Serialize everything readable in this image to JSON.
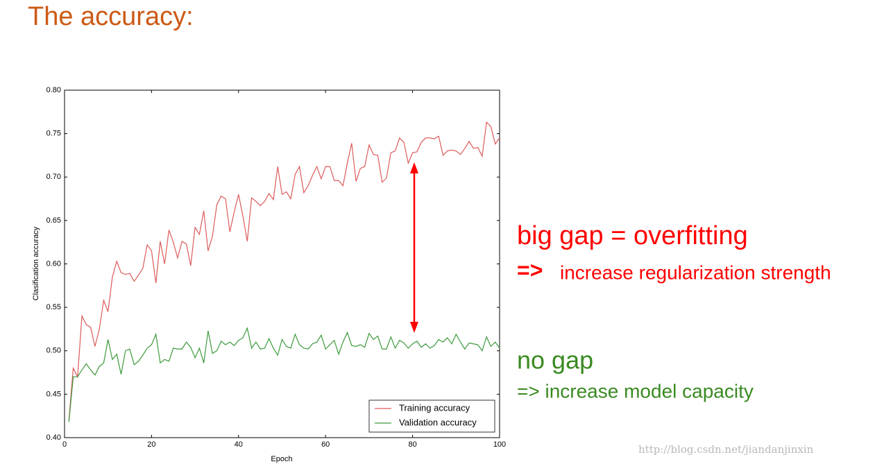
{
  "slide_title": "The accuracy:",
  "annotations": {
    "overfit_heading": "big gap = overfitting",
    "overfit_arrow": "=>",
    "overfit_advice": "increase regularization strength",
    "nogap_heading": "no gap",
    "nogap_advice": "=> increase model capacity"
  },
  "watermark": "http://blog.csdn.net/jiandanjinxin",
  "chart_data": {
    "type": "line",
    "x_label": "Epoch",
    "y_label": "Clasification accuracy",
    "x": [
      1,
      2,
      3,
      4,
      5,
      6,
      7,
      8,
      9,
      10,
      11,
      12,
      13,
      14,
      15,
      16,
      17,
      18,
      19,
      20,
      21,
      22,
      23,
      24,
      25,
      26,
      27,
      28,
      29,
      30,
      31,
      32,
      33,
      34,
      35,
      36,
      37,
      38,
      39,
      40,
      41,
      42,
      43,
      44,
      45,
      46,
      47,
      48,
      49,
      50,
      51,
      52,
      53,
      54,
      55,
      56,
      57,
      58,
      59,
      60,
      61,
      62,
      63,
      64,
      65,
      66,
      67,
      68,
      69,
      70,
      71,
      72,
      73,
      74,
      75,
      76,
      77,
      78,
      79,
      80,
      81,
      82,
      83,
      84,
      85,
      86,
      87,
      88,
      89,
      90,
      91,
      92,
      93,
      94,
      95,
      96,
      97,
      98,
      99,
      100
    ],
    "series": [
      {
        "name": "Training accuracy",
        "color": "#dc5a5a",
        "values": [
          0.42,
          0.48,
          0.47,
          0.54,
          0.53,
          0.527,
          0.505,
          0.525,
          0.558,
          0.545,
          0.585,
          0.603,
          0.59,
          0.588,
          0.589,
          0.58,
          0.587,
          0.595,
          0.622,
          0.615,
          0.578,
          0.626,
          0.6,
          0.639,
          0.625,
          0.607,
          0.626,
          0.623,
          0.598,
          0.642,
          0.634,
          0.661,
          0.615,
          0.632,
          0.668,
          0.678,
          0.675,
          0.637,
          0.66,
          0.68,
          0.655,
          0.626,
          0.676,
          0.672,
          0.667,
          0.672,
          0.681,
          0.674,
          0.712,
          0.68,
          0.683,
          0.675,
          0.703,
          0.712,
          0.682,
          0.69,
          0.702,
          0.712,
          0.698,
          0.712,
          0.712,
          0.696,
          0.696,
          0.69,
          0.716,
          0.739,
          0.695,
          0.71,
          0.712,
          0.737,
          0.726,
          0.725,
          0.694,
          0.699,
          0.728,
          0.73,
          0.745,
          0.74,
          0.716,
          0.728,
          0.729,
          0.74,
          0.745,
          0.745,
          0.744,
          0.747,
          0.725,
          0.73,
          0.731,
          0.73,
          0.726,
          0.733,
          0.741,
          0.733,
          0.734,
          0.724,
          0.763,
          0.758,
          0.738,
          0.745
        ]
      },
      {
        "name": "Validation accuracy",
        "color": "#3c9a3c",
        "values": [
          0.418,
          0.47,
          0.47,
          0.478,
          0.485,
          0.478,
          0.472,
          0.482,
          0.486,
          0.513,
          0.49,
          0.496,
          0.473,
          0.5,
          0.502,
          0.484,
          0.488,
          0.495,
          0.503,
          0.507,
          0.519,
          0.486,
          0.49,
          0.488,
          0.503,
          0.502,
          0.502,
          0.51,
          0.504,
          0.492,
          0.503,
          0.486,
          0.523,
          0.497,
          0.5,
          0.511,
          0.507,
          0.51,
          0.506,
          0.512,
          0.515,
          0.526,
          0.503,
          0.51,
          0.502,
          0.503,
          0.514,
          0.503,
          0.495,
          0.513,
          0.505,
          0.503,
          0.519,
          0.507,
          0.503,
          0.502,
          0.508,
          0.51,
          0.518,
          0.502,
          0.507,
          0.512,
          0.496,
          0.51,
          0.521,
          0.506,
          0.505,
          0.507,
          0.504,
          0.52,
          0.513,
          0.517,
          0.502,
          0.502,
          0.516,
          0.503,
          0.512,
          0.509,
          0.503,
          0.508,
          0.511,
          0.504,
          0.508,
          0.503,
          0.506,
          0.513,
          0.51,
          0.515,
          0.508,
          0.519,
          0.51,
          0.502,
          0.509,
          0.508,
          0.507,
          0.5,
          0.516,
          0.505,
          0.51,
          0.503
        ]
      }
    ],
    "xlim": [
      0,
      100
    ],
    "ylim": [
      0.4,
      0.8
    ],
    "xticks": [
      0,
      20,
      40,
      60,
      80,
      100
    ],
    "yticks": [
      {
        "value": 0.4,
        "label": "0.40"
      },
      {
        "value": 0.45,
        "label": "0.45"
      },
      {
        "value": 0.5,
        "label": "0.50"
      },
      {
        "value": 0.55,
        "label": "0.55"
      },
      {
        "value": 0.6,
        "label": "0.60"
      },
      {
        "value": 0.65,
        "label": "0.65"
      },
      {
        "value": 0.7,
        "label": "0.70"
      },
      {
        "value": 0.75,
        "label": "0.75"
      },
      {
        "value": 0.8,
        "label": "0.80"
      }
    ],
    "grid": false,
    "legend": "lower right"
  }
}
